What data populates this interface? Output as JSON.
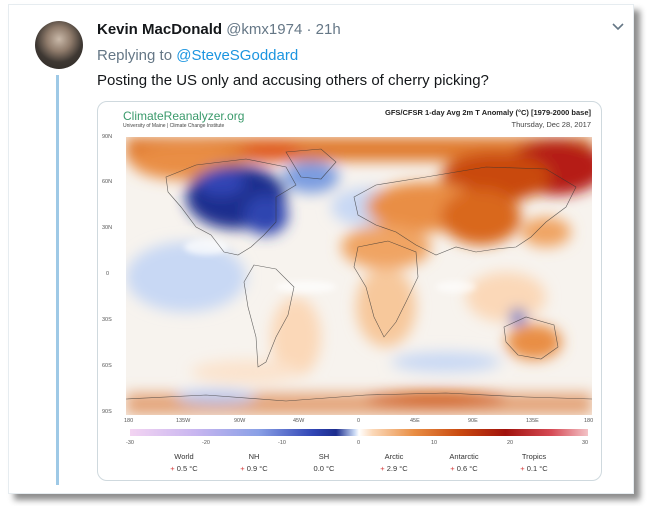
{
  "tweet": {
    "name": "Kevin MacDonald",
    "handle": "@kmx1974",
    "separator": "·",
    "time": "21h",
    "replying_prefix": "Replying to",
    "replying_to": "@SteveSGoddard",
    "text": "Posting the US only and accusing others of cherry picking?"
  },
  "map": {
    "brand": "ClimateReanalyzer.org",
    "brand_subtitle": "University of Maine | Climate Change Institute",
    "title": "GFS/CFSR 1-day Avg 2m T Anomaly (°C) [1979-2000 base]",
    "date": "Thursday, Dec 28, 2017",
    "lat_labels": [
      "90N",
      "60N",
      "30N",
      "0",
      "30S",
      "60S",
      "90S"
    ],
    "lon_labels": [
      "180",
      "135W",
      "90W",
      "45W",
      "0",
      "45E",
      "90E",
      "135E",
      "180"
    ],
    "colorbar_ticks": [
      "-30",
      "-20",
      "-10",
      "0",
      "10",
      "20",
      "30"
    ],
    "stats": [
      {
        "label": "World",
        "value": "0.5 °C"
      },
      {
        "label": "NH",
        "value": "0.9 °C"
      },
      {
        "label": "SH",
        "value": "0.0 °C"
      },
      {
        "label": "Arctic",
        "value": "2.9 °C"
      },
      {
        "label": "Antarctic",
        "value": "0.6 °C"
      },
      {
        "label": "Tropics",
        "value": "0.1 °C"
      }
    ],
    "stat_plus_marks": [
      "+",
      "+",
      "",
      "+",
      "+",
      "+"
    ]
  },
  "colors": {
    "accent": "#1b95e0",
    "thread_line": "#9ec9e6",
    "cold": "#1c2d8e",
    "warm": "#c94a10"
  },
  "icons": [
    "chevron-down-icon",
    "avatar"
  ]
}
